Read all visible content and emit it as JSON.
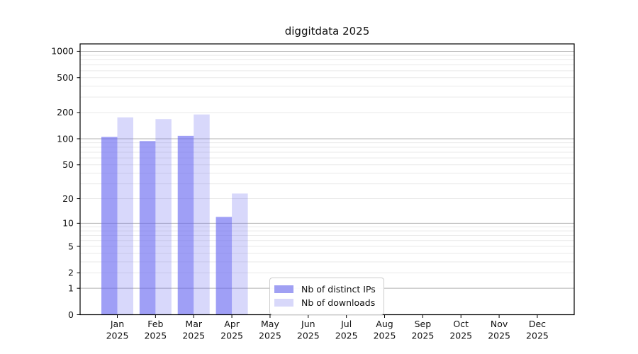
{
  "page": {
    "background": "#ffffff"
  },
  "chart_data": {
    "type": "bar",
    "title": "diggitdata 2025",
    "categories": [
      "Jan 2025",
      "Feb 2025",
      "Mar 2025",
      "Apr 2025",
      "May 2025",
      "Jun 2025",
      "Jul 2025",
      "Aug 2025",
      "Sep 2025",
      "Oct 2025",
      "Nov 2025",
      "Dec 2025"
    ],
    "series": [
      {
        "name": "Nb of distinct IPs",
        "color": "#a0a0f3",
        "fill": "rgba(100,100,240,0.62)",
        "values": [
          105,
          94,
          108,
          12,
          0,
          0,
          0,
          0,
          0,
          0,
          0,
          0
        ]
      },
      {
        "name": "Nb of downloads",
        "color": "#d8d8fa",
        "fill": "rgba(100,100,240,0.25)",
        "values": [
          176,
          168,
          190,
          23,
          0,
          0,
          0,
          0,
          0,
          0,
          0,
          0
        ]
      }
    ],
    "y_ticks": [
      0,
      1,
      2,
      5,
      10,
      20,
      50,
      100,
      200,
      500,
      1000
    ],
    "y_tick_labels": [
      "0",
      "1",
      "2",
      "5",
      "10",
      "20",
      "50",
      "100",
      "200",
      "500",
      "1000"
    ],
    "y_scale": "log1p",
    "ylim": [
      0,
      1215
    ],
    "grid": true,
    "legend_position": "lower-center",
    "colors": {
      "axis": "#000000",
      "grid_major": "#b3b3b3",
      "grid_minor": "#e9e9e9",
      "text": "#111111",
      "legend_border": "#cccccc"
    }
  }
}
